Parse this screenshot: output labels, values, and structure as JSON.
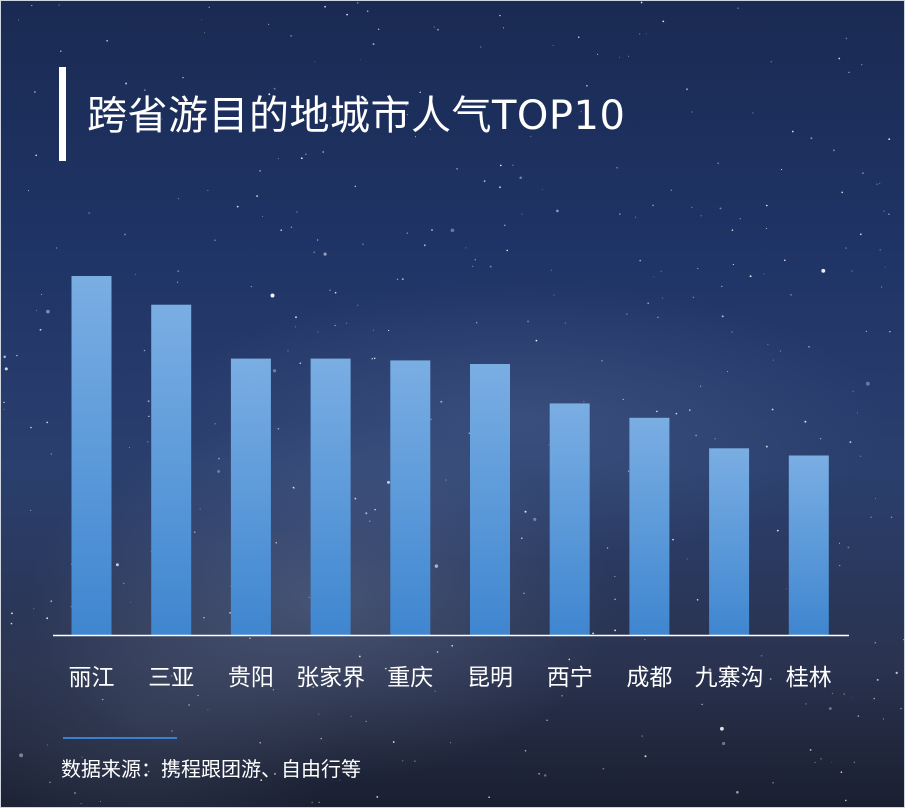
{
  "title": "跨省游目的地城市人气TOP10",
  "source": "数据来源：携程跟团游、自由行等",
  "colors": {
    "bar_top": "#7aaee3",
    "bar_bottom": "#3f86d0",
    "axis": "#ffffff",
    "text": "#ffffff"
  },
  "chart_data": {
    "type": "bar",
    "title": "跨省游目的地城市人气TOP10",
    "categories": [
      "丽江",
      "三亚",
      "贵阳",
      "张家界",
      "重庆",
      "昆明",
      "西宁",
      "成都",
      "九寨沟",
      "桂林"
    ],
    "values": [
      100,
      92,
      77,
      77,
      76.5,
      75.5,
      64.5,
      60.5,
      52,
      50
    ],
    "ylim": [
      0,
      100
    ],
    "xlabel": "",
    "ylabel": "",
    "grid": false,
    "legend": "none"
  }
}
